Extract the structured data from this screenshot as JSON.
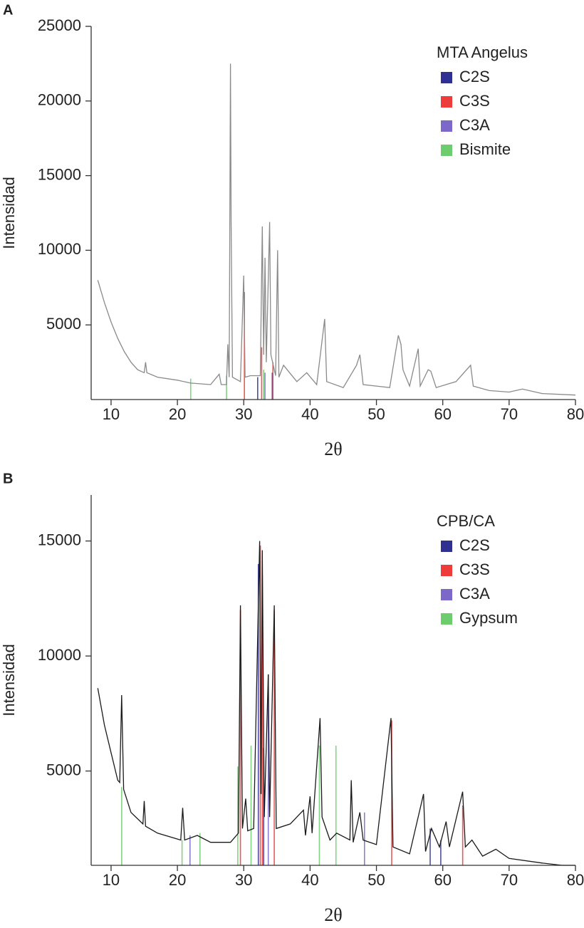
{
  "chart_data": [
    {
      "type": "line",
      "panel_label": "A",
      "xlabel": "2θ",
      "ylabel": "Intensidad",
      "xlim": [
        7,
        80
      ],
      "xticks": [
        10,
        20,
        30,
        40,
        50,
        60,
        70,
        80
      ],
      "ylim": [
        0,
        25000
      ],
      "yticks": [
        5000,
        10000,
        15000,
        20000,
        25000
      ],
      "legend": "upper right",
      "series": [
        {
          "name": "MTA Angelus",
          "color": "#8a8a8a",
          "x": [
            8,
            9,
            10,
            11,
            12,
            13,
            14,
            15,
            15.2,
            15.4,
            17,
            20,
            22,
            25,
            26.3,
            26.6,
            27.4,
            27.6,
            27.8,
            28.0,
            28.1,
            28.3,
            29.5,
            30.0,
            30.2,
            31,
            32.5,
            32.8,
            33.0,
            33.2,
            33.4,
            33.9,
            34.1,
            34.8,
            35.1,
            35.3,
            36,
            38,
            39.5,
            41,
            42.2,
            42.5,
            45,
            47,
            47.5,
            48,
            50,
            52,
            53.3,
            53.7,
            54,
            55,
            56.3,
            56.6,
            57.8,
            58.2,
            59,
            62,
            64.2,
            64.6,
            67,
            70,
            72,
            75,
            80
          ],
          "values": [
            8000,
            6500,
            5200,
            4100,
            3200,
            2500,
            2000,
            1800,
            2500,
            1800,
            1500,
            1300,
            1100,
            1000,
            1700,
            1000,
            1000,
            3700,
            1500,
            22500,
            12000,
            1500,
            1200,
            8300,
            1500,
            1600,
            1600,
            11600,
            3000,
            9500,
            2500,
            11900,
            3000,
            1600,
            10000,
            1500,
            2300,
            1200,
            1800,
            1000,
            5400,
            1200,
            800,
            2300,
            3000,
            1000,
            900,
            800,
            4300,
            3700,
            2000,
            900,
            3400,
            900,
            2000,
            1900,
            800,
            1200,
            2300,
            900,
            600,
            500,
            700,
            400,
            300
          ]
        },
        {
          "name": "C2S",
          "color": "#2e3192",
          "x": [
            32.1,
            34.3
          ],
          "values": [
            1500,
            1800
          ]
        },
        {
          "name": "C3S",
          "color": "#ee3b3b",
          "x": [
            30.1,
            32.7,
            34.4
          ],
          "values": [
            7200,
            3500,
            2500
          ]
        },
        {
          "name": "C3A",
          "color": "#7b68c8",
          "x": [
            33.2
          ],
          "values": [
            1800
          ]
        },
        {
          "name": "Bismite",
          "color": "#6dcc6d",
          "x": [
            22.0,
            27.4,
            33.0
          ],
          "values": [
            1400,
            1600,
            2000
          ]
        }
      ]
    },
    {
      "type": "line",
      "panel_label": "B",
      "xlabel": "2θ",
      "ylabel": "Intensidad",
      "xlim": [
        7,
        80
      ],
      "xticks": [
        10,
        20,
        30,
        40,
        50,
        60,
        70,
        80
      ],
      "ylim": [
        900,
        17000
      ],
      "yticks": [
        5000,
        10000,
        15000
      ],
      "legend": "upper right",
      "series": [
        {
          "name": "CPB/CA",
          "color": "#1a1a1a",
          "x": [
            8,
            9,
            10,
            11,
            11.3,
            11.6,
            11.9,
            13,
            14.8,
            15,
            15.2,
            17,
            20.5,
            20.8,
            21.1,
            23,
            25,
            28,
            29.2,
            29.5,
            29.8,
            30.3,
            30.6,
            31.5,
            32.4,
            32.6,
            32.8,
            33.1,
            33.7,
            33.9,
            34.6,
            34.9,
            37,
            39,
            39.3,
            40,
            40.3,
            41.5,
            41.8,
            43,
            44,
            46,
            46.2,
            46.5,
            47.5,
            48,
            50,
            52.2,
            52.5,
            55,
            57.1,
            57.4,
            58.3,
            59.5,
            60.5,
            61,
            63,
            63.4,
            64.4,
            66,
            68,
            70,
            75,
            78,
            80
          ],
          "values": [
            8600,
            7000,
            5800,
            4600,
            4500,
            8300,
            4200,
            3200,
            2700,
            3700,
            2600,
            2300,
            2000,
            3400,
            2000,
            2200,
            1900,
            1900,
            2300,
            12200,
            2500,
            3800,
            2400,
            2500,
            15000,
            4000,
            14600,
            3000,
            9200,
            3000,
            12200,
            2500,
            2700,
            3300,
            2200,
            3900,
            2300,
            7300,
            3000,
            2000,
            2300,
            2000,
            4600,
            1900,
            3200,
            2000,
            1800,
            7300,
            1700,
            1400,
            4000,
            1500,
            2500,
            1700,
            2800,
            1700,
            4100,
            1700,
            2000,
            1300,
            1600,
            1200,
            1000,
            900,
            900
          ]
        },
        {
          "name": "C2S",
          "color": "#2e3192",
          "x": [
            32.2,
            33.0,
            58.1,
            59.7
          ],
          "values": [
            14000,
            6000,
            2500,
            2000
          ]
        },
        {
          "name": "C3S",
          "color": "#ee3b3b",
          "x": [
            29.5,
            32.5,
            32.8,
            34.6,
            52.3,
            63.0
          ],
          "values": [
            12000,
            14800,
            13500,
            12000,
            7200,
            3500
          ]
        },
        {
          "name": "C3A",
          "color": "#7b68c8",
          "x": [
            21.9,
            33.7,
            48.2
          ],
          "values": [
            2200,
            9200,
            3200
          ]
        },
        {
          "name": "Gypsum",
          "color": "#6dcc6d",
          "x": [
            11.6,
            20.7,
            23.4,
            29.1,
            31.1,
            41.4,
            43.9
          ],
          "values": [
            4300,
            2000,
            2300,
            5200,
            6100,
            6100,
            6100
          ]
        }
      ]
    }
  ]
}
